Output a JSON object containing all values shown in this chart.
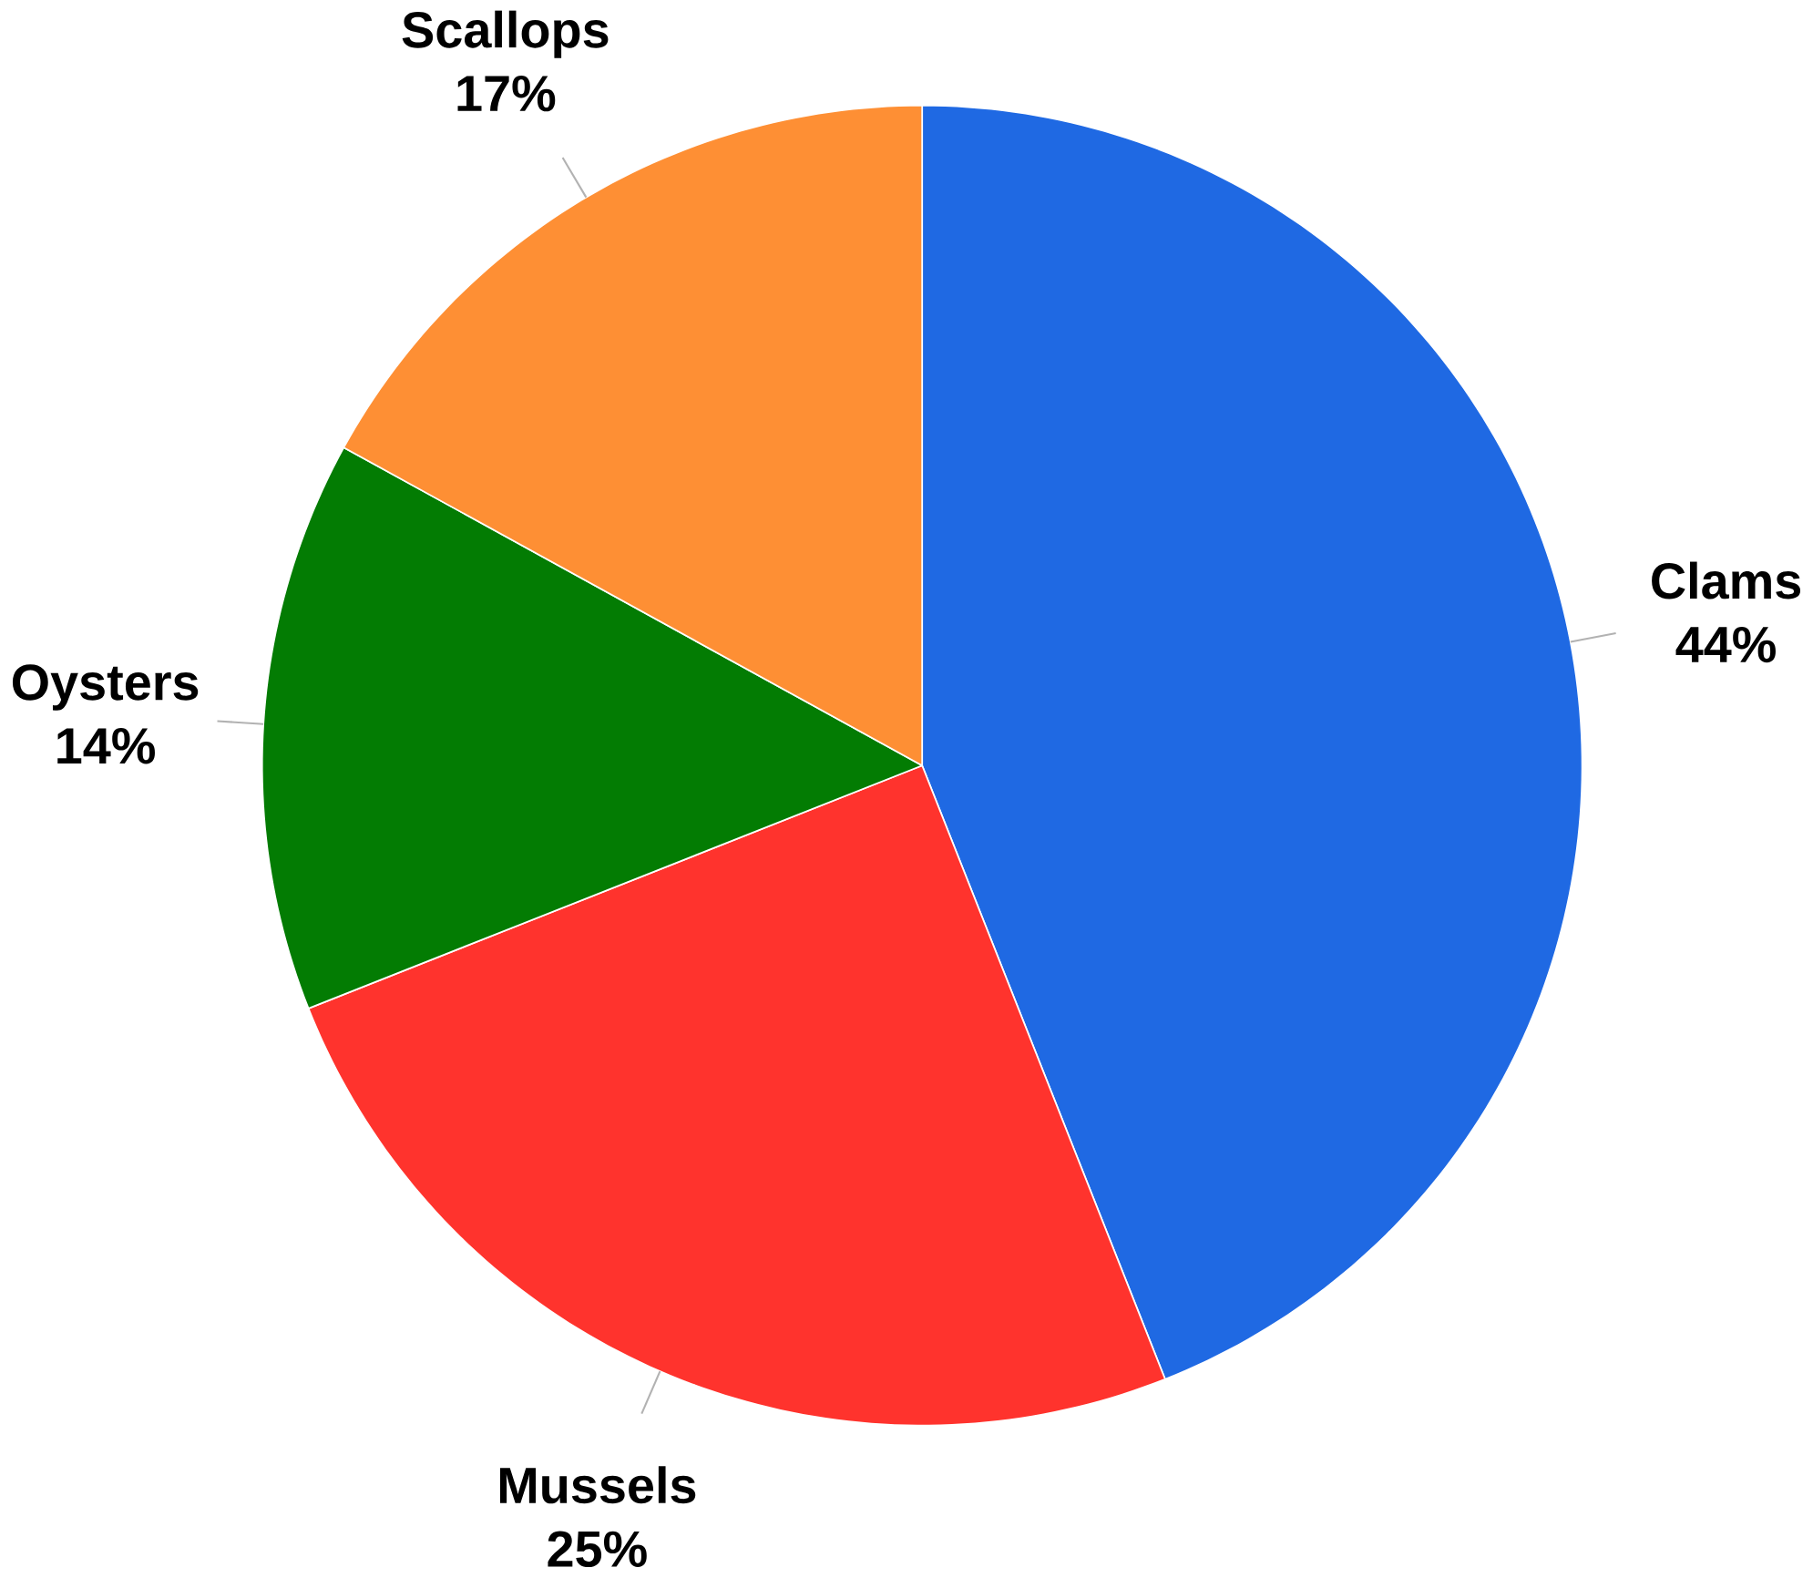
{
  "chart_data": {
    "type": "pie",
    "categories": [
      "Clams",
      "Mussels",
      "Oysters",
      "Scallops"
    ],
    "values": [
      44,
      25,
      14,
      17
    ],
    "value_labels": [
      "44%",
      "25%",
      "14%",
      "17%"
    ],
    "colors": [
      "#1f69e3",
      "#ff332d",
      "#037c03",
      "#fe8f34"
    ]
  }
}
